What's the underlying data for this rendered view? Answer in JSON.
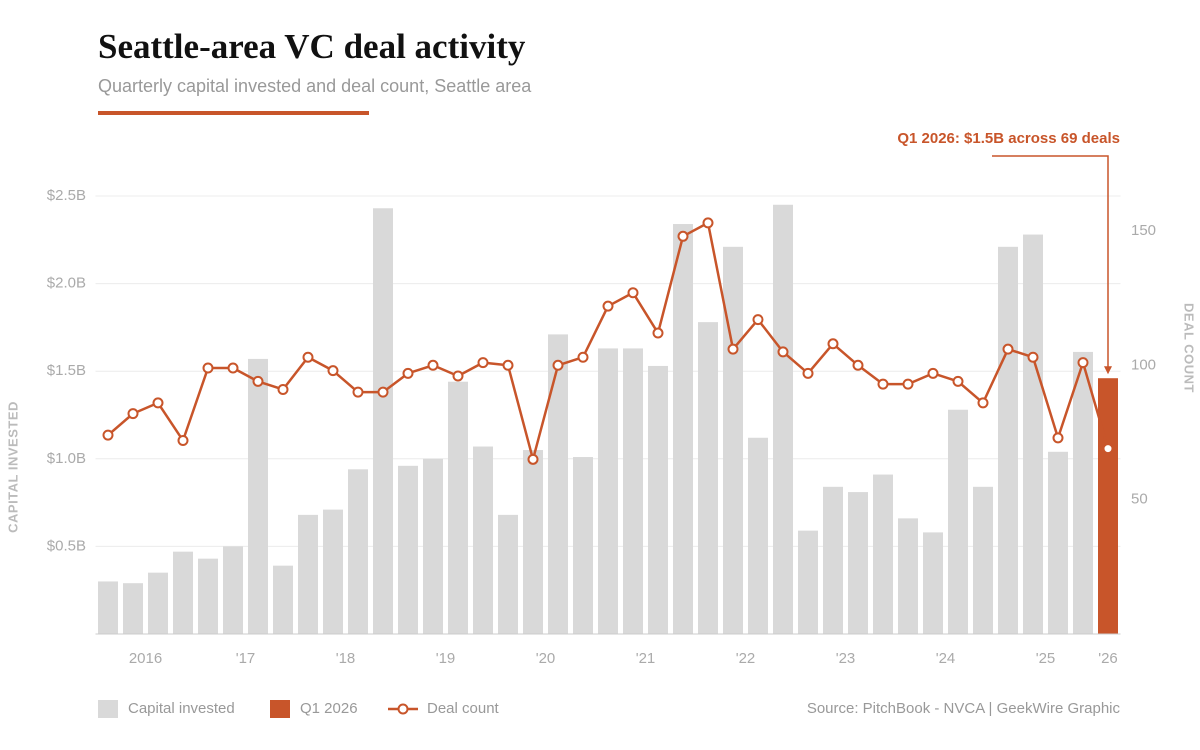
{
  "chart_data": {
    "type": "bar",
    "title": "Seattle-area VC deal activity",
    "subtitle": "Quarterly capital invested and deal count, Seattle area",
    "annotation": "Q1 2026: $1.5B across 69 deals",
    "source": "Source: PitchBook - NVCA | GeekWire Graphic",
    "ylabel": "CAPITAL INVESTED",
    "y2label": "DEAL COUNT",
    "categories": [
      "2016",
      null,
      null,
      null,
      "'17",
      null,
      null,
      null,
      "'18",
      null,
      null,
      null,
      "'19",
      null,
      null,
      null,
      "'20",
      null,
      null,
      null,
      "'21",
      null,
      null,
      null,
      "'22",
      null,
      null,
      null,
      "'23",
      null,
      null,
      null,
      "'24",
      null,
      null,
      null,
      "'25",
      null,
      null,
      null,
      "'26"
    ],
    "series": [
      {
        "name": "Capital invested",
        "type": "bar",
        "color": "#d9d9d9",
        "values": [
          0.3,
          0.29,
          0.35,
          0.47,
          0.43,
          0.5,
          1.57,
          0.39,
          0.68,
          0.71,
          0.94,
          2.43,
          0.96,
          1.0,
          1.44,
          1.07,
          0.68,
          1.05,
          1.71,
          1.01,
          1.63,
          1.63,
          1.53,
          2.34,
          1.78,
          2.21,
          1.12,
          2.45,
          0.59,
          0.84,
          0.81,
          0.91,
          0.66,
          0.58,
          1.28,
          0.84,
          2.21,
          2.28,
          1.04,
          1.61,
          null
        ]
      },
      {
        "name": "Q1 2026",
        "type": "bar",
        "color": "#c8552a",
        "values": [
          null,
          null,
          null,
          null,
          null,
          null,
          null,
          null,
          null,
          null,
          null,
          null,
          null,
          null,
          null,
          null,
          null,
          null,
          null,
          null,
          null,
          null,
          null,
          null,
          null,
          null,
          null,
          null,
          null,
          null,
          null,
          null,
          null,
          null,
          null,
          null,
          null,
          null,
          null,
          null,
          1.46
        ]
      },
      {
        "name": "Deal count",
        "type": "line",
        "axis": "y2",
        "color": "#c8552a",
        "values": [
          74,
          82,
          86,
          72,
          99,
          99,
          94,
          91,
          103,
          98,
          90,
          90,
          97,
          100,
          96,
          101,
          100,
          65,
          100,
          103,
          122,
          127,
          112,
          148,
          153,
          106,
          117,
          105,
          97,
          108,
          100,
          93,
          93,
          97,
          94,
          86,
          106,
          103,
          73,
          101,
          69
        ]
      }
    ],
    "ylim": [
      0,
      2.5
    ],
    "yticks": [
      {
        "value": 0.5,
        "label": "$0.5B"
      },
      {
        "value": 1.0,
        "label": "$1.0B"
      },
      {
        "value": 1.5,
        "label": "$1.5B"
      },
      {
        "value": 2.0,
        "label": "$2.0B"
      },
      {
        "value": 2.5,
        "label": "$2.5B"
      }
    ],
    "y2lim": [
      0,
      163
    ],
    "y2ticks": [
      50,
      100,
      150
    ],
    "grid": true
  }
}
